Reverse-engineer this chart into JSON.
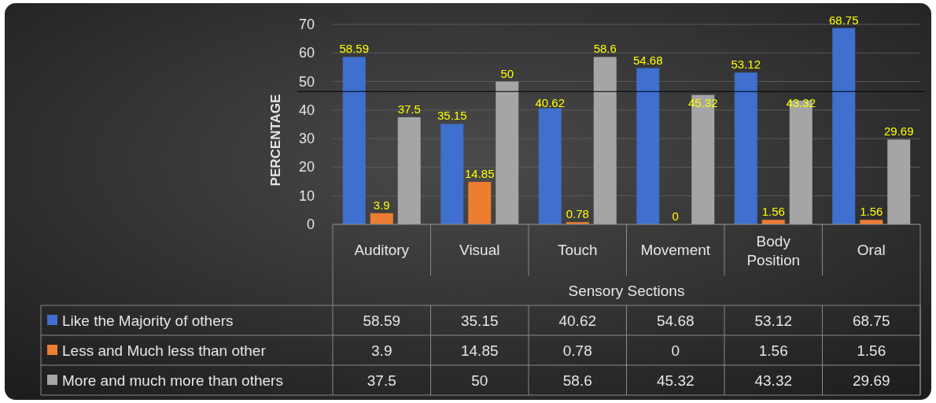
{
  "chart_data": {
    "type": "bar",
    "xlabel": "Sensory Sections",
    "ylabel": "PERCENTAGE",
    "categories": [
      "Auditory",
      "Visual",
      "Touch",
      "Movement",
      "Body Position",
      "Oral"
    ],
    "series": [
      {
        "name": "Like the Majority of others",
        "color": "#3f6fcf",
        "values": [
          58.59,
          35.15,
          40.62,
          54.68,
          53.12,
          68.75
        ],
        "value_labels": [
          "58.59",
          "35.15",
          "40.62",
          "54.68",
          "53.12",
          "68.75"
        ]
      },
      {
        "name": "Less and Much less than other",
        "color": "#ed7d31",
        "values": [
          3.9,
          14.85,
          0.78,
          0,
          1.56,
          1.56
        ],
        "value_labels": [
          "3.9",
          "14.85",
          "0.78",
          "0",
          "1.56",
          "1.56"
        ]
      },
      {
        "name": "More and much more than others",
        "color": "#a5a5a5",
        "values": [
          37.5,
          50,
          58.6,
          45.32,
          43.32,
          29.69
        ],
        "value_labels": [
          "37.5",
          "50",
          "58.6",
          "45.32",
          "43.32",
          "29.69"
        ]
      }
    ],
    "ylim": [
      0,
      70
    ],
    "yticks": [
      0,
      10,
      20,
      30,
      40,
      50,
      60,
      70
    ],
    "grid": "y",
    "legend": "bottom",
    "annotations": [
      "58.59",
      "35.15",
      "40.62",
      "54.68",
      "53.12",
      "68.75",
      "3.9",
      "14.85",
      "0.78",
      "0",
      "1.56",
      "1.56",
      "37.5",
      "50",
      "58.6",
      "45.32",
      "43.32",
      "29.69"
    ],
    "ref_lines": [
      {
        "axis": "y",
        "value": 46.5,
        "color": "#000000"
      }
    ]
  }
}
